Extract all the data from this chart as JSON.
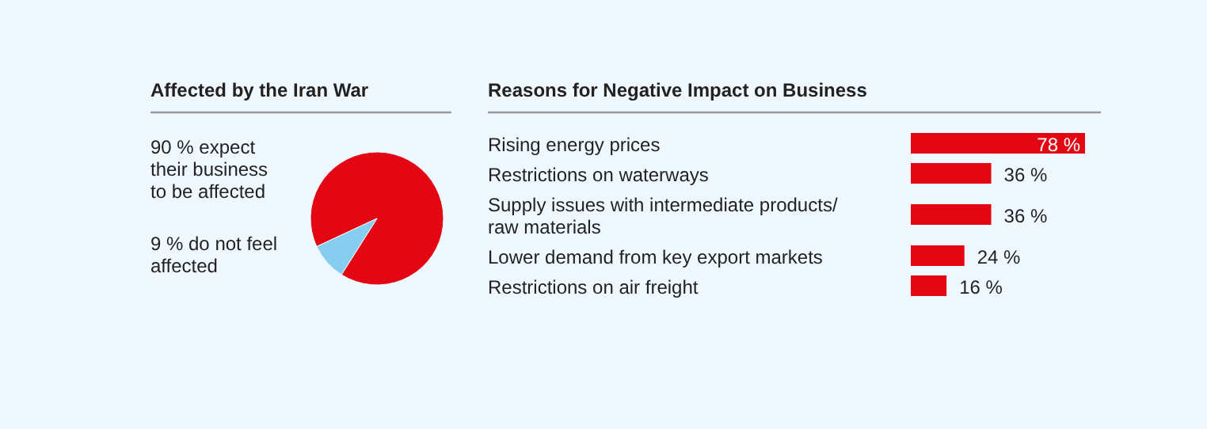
{
  "chart_data": [
    {
      "type": "pie",
      "title": "Affected by the Iran War",
      "categories": [
        "expect their business to be affected",
        "do not feel affected"
      ],
      "values": [
        90,
        9
      ],
      "value_labels": [
        "90 %",
        "9 %"
      ],
      "colors": [
        "#e30613",
        "#87cdf0"
      ]
    },
    {
      "type": "bar",
      "orientation": "horizontal",
      "title": "Reasons for Negative Impact on Business",
      "categories": [
        "Rising energy prices",
        "Restrictions on waterways",
        "Supply issues with intermediate products/ raw materials",
        "Lower demand from key export markets",
        "Restrictions on air freight"
      ],
      "values": [
        78,
        36,
        36,
        24,
        16
      ],
      "value_labels": [
        "78 %",
        "36 %",
        "36 %",
        "24 %",
        "16 %"
      ],
      "color": "#e30613"
    }
  ]
}
